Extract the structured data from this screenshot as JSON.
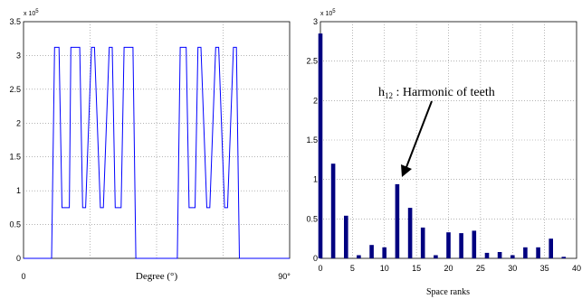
{
  "chart_data": [
    {
      "type": "line",
      "xlabel": "Degree (°)",
      "x_end_labels": [
        "0",
        "90°"
      ],
      "xlim": [
        0,
        90
      ],
      "ylim": [
        0,
        350000
      ],
      "y_multiplier": "x 10",
      "y_multiplier_exp": "5",
      "yticks": [
        0,
        0.5,
        1,
        1.5,
        2,
        2.5,
        3,
        3.5
      ],
      "grid": true,
      "line_color": "#0000ff",
      "series": [
        {
          "x": [
            0,
            9.5,
            10.5,
            12,
            13,
            15.5,
            16,
            17,
            19,
            20,
            21,
            23,
            24,
            26,
            27,
            29,
            30,
            31,
            33,
            34,
            37,
            38,
            40,
            45,
            50,
            52,
            53,
            55,
            56,
            58,
            59,
            60,
            62,
            63,
            65,
            66,
            68,
            69,
            71,
            72,
            73,
            75,
            76,
            80,
            90
          ],
          "y": [
            0,
            0,
            312000,
            312000,
            75000,
            75000,
            312000,
            312000,
            312000,
            75000,
            75000,
            312000,
            312000,
            75000,
            75000,
            312000,
            312000,
            75000,
            75000,
            312000,
            312000,
            0,
            0,
            0,
            0,
            0,
            312000,
            312000,
            75000,
            75000,
            312000,
            312000,
            75000,
            75000,
            312000,
            312000,
            75000,
            75000,
            312000,
            312000,
            0,
            0,
            0,
            0,
            0
          ]
        }
      ]
    },
    {
      "type": "bar",
      "xlabel": "Space ranks",
      "xlim": [
        0,
        40
      ],
      "xticks": [
        0,
        5,
        10,
        15,
        20,
        25,
        30,
        35,
        40
      ],
      "ylim": [
        0,
        300000
      ],
      "yticks": [
        0,
        0.5,
        1,
        1.5,
        2,
        2.5,
        3
      ],
      "y_multiplier": "x 10",
      "y_multiplier_exp": "5",
      "grid": true,
      "bar_color": "#000080",
      "annotation": {
        "prefix": "h",
        "sub": "12",
        "text": " : Harmonic of teeth",
        "target_x": 12,
        "target_y": 95000
      },
      "x": [
        0,
        2,
        4,
        6,
        8,
        10,
        12,
        14,
        16,
        18,
        20,
        22,
        24,
        26,
        28,
        30,
        32,
        34,
        36,
        38
      ],
      "values": [
        285000,
        120000,
        54000,
        4000,
        17000,
        14000,
        94000,
        64000,
        39000,
        4000,
        33000,
        32000,
        35000,
        7000,
        8000,
        4000,
        14000,
        14000,
        25000,
        2000
      ]
    }
  ]
}
